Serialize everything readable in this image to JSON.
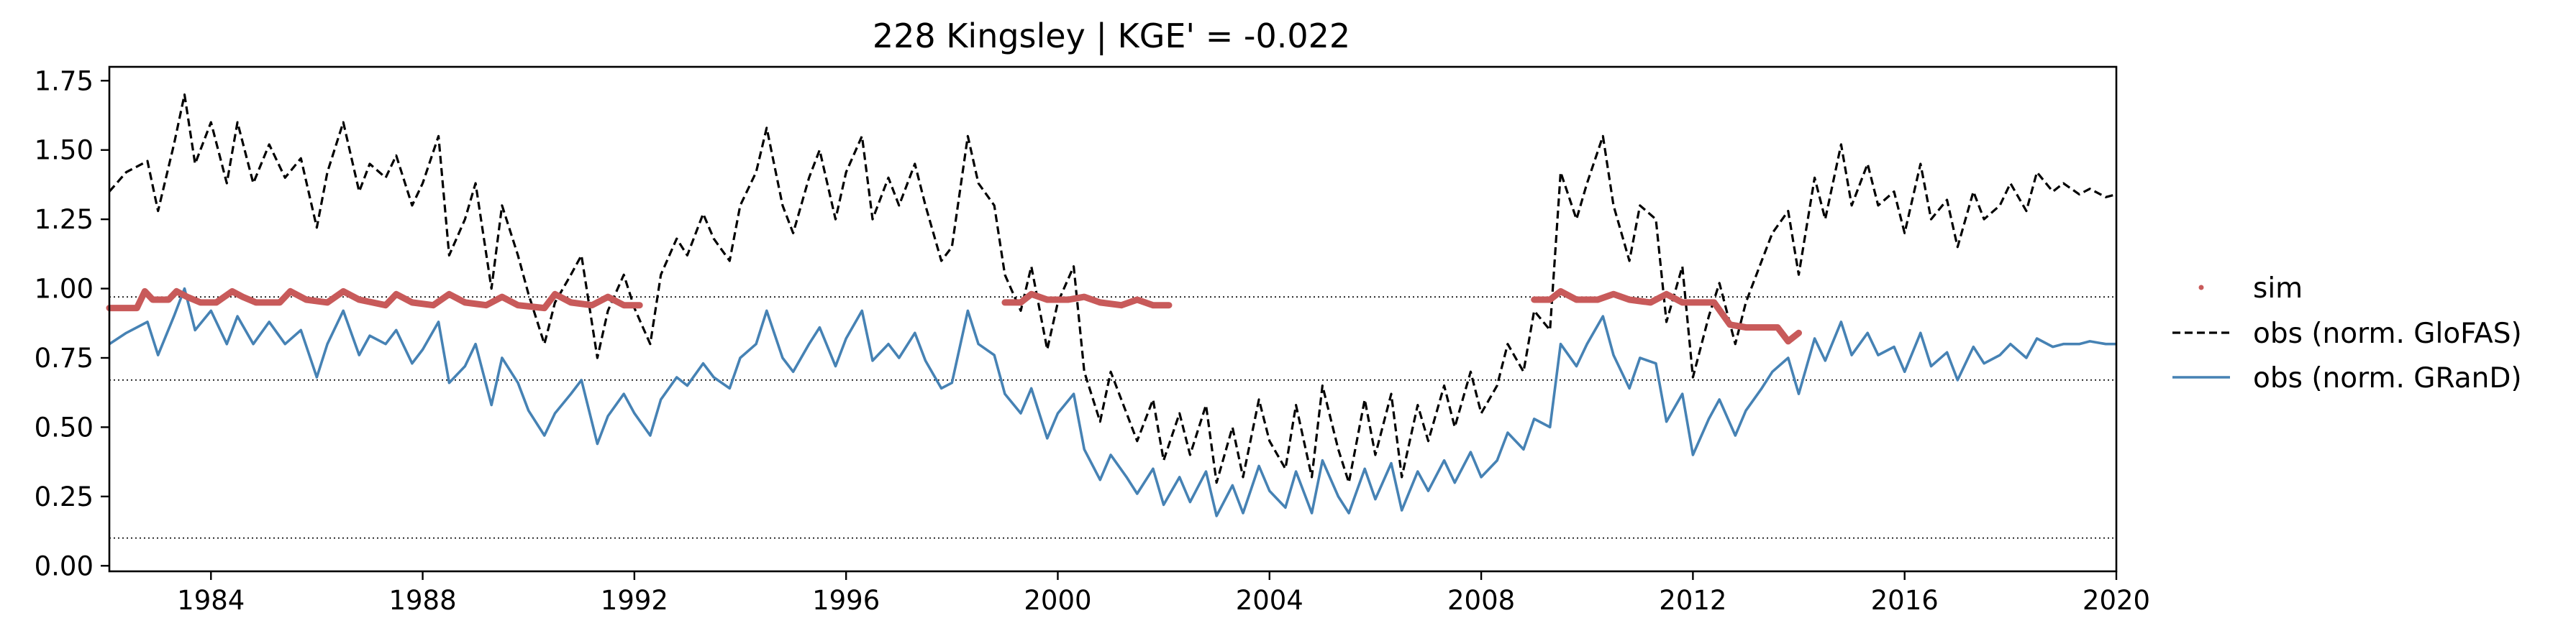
{
  "chart_data": {
    "type": "line",
    "title": "228  Kingsley | KGE' = -0.022",
    "xlabel": "",
    "ylabel": "",
    "xlim": [
      1982.08,
      2020.0
    ],
    "ylim": [
      -0.02,
      1.8
    ],
    "xticks": [
      1984,
      1988,
      1992,
      1996,
      2000,
      2004,
      2008,
      2012,
      2016,
      2020
    ],
    "yticks": [
      0.0,
      0.25,
      0.5,
      0.75,
      1.0,
      1.25,
      1.5,
      1.75
    ],
    "ytick_labels": [
      "0.00",
      "0.25",
      "0.50",
      "0.75",
      "1.00",
      "1.25",
      "1.50",
      "1.75"
    ],
    "grid": false,
    "legend_position": "outside-right",
    "reference_lines": [
      0.97,
      0.67,
      0.1
    ],
    "series": [
      {
        "name": "sim",
        "style": "dots",
        "color": "#c85a5a",
        "segments": [
          {
            "x": [
              1982.08,
              1982.6,
              1982.75,
              1982.9,
              1983.2,
              1983.35,
              1983.55,
              1983.8,
              1984.1,
              1984.4,
              1984.6,
              1984.85,
              1985.3,
              1985.5,
              1985.8,
              1986.2,
              1986.5,
              1986.8,
              1987.3,
              1987.5,
              1987.8,
              1988.2,
              1988.5,
              1988.8,
              1989.2,
              1989.5,
              1989.8,
              1990.3,
              1990.5,
              1990.8,
              1991.2,
              1991.5,
              1991.8,
              1992.1
            ],
            "y": [
              0.93,
              0.93,
              0.99,
              0.96,
              0.96,
              0.99,
              0.97,
              0.95,
              0.95,
              0.99,
              0.97,
              0.95,
              0.95,
              0.99,
              0.96,
              0.95,
              0.99,
              0.96,
              0.94,
              0.98,
              0.95,
              0.94,
              0.98,
              0.95,
              0.94,
              0.97,
              0.94,
              0.93,
              0.98,
              0.95,
              0.94,
              0.97,
              0.94,
              0.94
            ]
          },
          {
            "x": [
              1999.0,
              1999.3,
              1999.5,
              1999.8,
              2000.2,
              2000.5,
              2000.8,
              2001.2,
              2001.5,
              2001.8,
              2002.1
            ],
            "y": [
              0.95,
              0.95,
              0.98,
              0.96,
              0.96,
              0.97,
              0.95,
              0.94,
              0.96,
              0.94,
              0.94
            ]
          },
          {
            "x": [
              2009.0,
              2009.3,
              2009.5,
              2009.8,
              2010.2,
              2010.5,
              2010.8,
              2011.2,
              2011.5,
              2011.8,
              2012.1,
              2012.4,
              2012.7,
              2013.0,
              2013.3,
              2013.6,
              2013.8,
              2014.0
            ],
            "y": [
              0.96,
              0.96,
              0.99,
              0.96,
              0.96,
              0.98,
              0.96,
              0.95,
              0.98,
              0.95,
              0.95,
              0.95,
              0.87,
              0.86,
              0.86,
              0.86,
              0.81,
              0.84
            ]
          }
        ]
      },
      {
        "name": "obs (norm. GloFAS)",
        "style": "dashed",
        "color": "#000000",
        "x": [
          1982.08,
          1982.4,
          1982.8,
          1983.0,
          1983.3,
          1983.5,
          1983.7,
          1984.0,
          1984.3,
          1984.5,
          1984.8,
          1985.1,
          1985.4,
          1985.7,
          1986.0,
          1986.2,
          1986.5,
          1986.8,
          1987.0,
          1987.3,
          1987.5,
          1987.8,
          1988.0,
          1988.3,
          1988.5,
          1988.8,
          1989.0,
          1989.3,
          1989.5,
          1989.8,
          1990.0,
          1990.3,
          1990.5,
          1990.8,
          1991.0,
          1991.3,
          1991.5,
          1991.8,
          1992.0,
          1992.3,
          1992.5,
          1992.8,
          1993.0,
          1993.3,
          1993.5,
          1993.8,
          1994.0,
          1994.3,
          1994.5,
          1994.8,
          1995.0,
          1995.3,
          1995.5,
          1995.8,
          1996.0,
          1996.3,
          1996.5,
          1996.8,
          1997.0,
          1997.3,
          1997.5,
          1997.8,
          1998.0,
          1998.3,
          1998.5,
          1998.8,
          1999.0,
          1999.3,
          1999.5,
          1999.8,
          2000.0,
          2000.3,
          2000.5,
          2000.8,
          2001.0,
          2001.3,
          2001.5,
          2001.8,
          2002.0,
          2002.3,
          2002.5,
          2002.8,
          2003.0,
          2003.3,
          2003.5,
          2003.8,
          2004.0,
          2004.3,
          2004.5,
          2004.8,
          2005.0,
          2005.3,
          2005.5,
          2005.8,
          2006.0,
          2006.3,
          2006.5,
          2006.8,
          2007.0,
          2007.3,
          2007.5,
          2007.8,
          2008.0,
          2008.3,
          2008.5,
          2008.8,
          2009.0,
          2009.3,
          2009.5,
          2009.8,
          2010.0,
          2010.3,
          2010.5,
          2010.8,
          2011.0,
          2011.3,
          2011.5,
          2011.8,
          2012.0,
          2012.3,
          2012.5,
          2012.8,
          2013.0,
          2013.3,
          2013.5,
          2013.8,
          2014.0,
          2014.3,
          2014.5,
          2014.8,
          2015.0,
          2015.3,
          2015.5,
          2015.8,
          2016.0,
          2016.3,
          2016.5,
          2016.8,
          2017.0,
          2017.3,
          2017.5,
          2017.8,
          2018.0,
          2018.3,
          2018.5,
          2018.8,
          2019.0,
          2019.3,
          2019.5,
          2019.8,
          2020.0
        ],
        "y": [
          1.35,
          1.42,
          1.46,
          1.28,
          1.52,
          1.7,
          1.45,
          1.6,
          1.38,
          1.6,
          1.38,
          1.52,
          1.4,
          1.47,
          1.22,
          1.42,
          1.6,
          1.35,
          1.45,
          1.4,
          1.48,
          1.3,
          1.38,
          1.55,
          1.12,
          1.25,
          1.38,
          1.0,
          1.3,
          1.12,
          0.98,
          0.8,
          0.95,
          1.05,
          1.12,
          0.75,
          0.92,
          1.05,
          0.93,
          0.8,
          1.05,
          1.18,
          1.12,
          1.27,
          1.18,
          1.1,
          1.3,
          1.42,
          1.58,
          1.3,
          1.2,
          1.4,
          1.5,
          1.25,
          1.42,
          1.55,
          1.25,
          1.4,
          1.3,
          1.45,
          1.3,
          1.1,
          1.15,
          1.55,
          1.38,
          1.3,
          1.05,
          0.92,
          1.08,
          0.78,
          0.95,
          1.08,
          0.7,
          0.52,
          0.7,
          0.55,
          0.45,
          0.6,
          0.38,
          0.55,
          0.4,
          0.58,
          0.3,
          0.5,
          0.32,
          0.6,
          0.45,
          0.35,
          0.58,
          0.32,
          0.65,
          0.42,
          0.3,
          0.6,
          0.4,
          0.62,
          0.32,
          0.58,
          0.45,
          0.65,
          0.5,
          0.7,
          0.55,
          0.65,
          0.8,
          0.7,
          0.92,
          0.85,
          1.42,
          1.25,
          1.38,
          1.55,
          1.3,
          1.1,
          1.3,
          1.25,
          0.88,
          1.08,
          0.68,
          0.9,
          1.02,
          0.8,
          0.95,
          1.1,
          1.2,
          1.28,
          1.05,
          1.4,
          1.25,
          1.52,
          1.3,
          1.45,
          1.3,
          1.35,
          1.2,
          1.45,
          1.25,
          1.32,
          1.15,
          1.35,
          1.25,
          1.3,
          1.38,
          1.28,
          1.42,
          1.35,
          1.38,
          1.34,
          1.36,
          1.33,
          1.34
        ]
      },
      {
        "name": "obs (norm. GRanD)",
        "style": "solid",
        "color": "#4682b4",
        "x": [
          1982.08,
          1982.4,
          1982.8,
          1983.0,
          1983.3,
          1983.5,
          1983.7,
          1984.0,
          1984.3,
          1984.5,
          1984.8,
          1985.1,
          1985.4,
          1985.7,
          1986.0,
          1986.2,
          1986.5,
          1986.8,
          1987.0,
          1987.3,
          1987.5,
          1987.8,
          1988.0,
          1988.3,
          1988.5,
          1988.8,
          1989.0,
          1989.3,
          1989.5,
          1989.8,
          1990.0,
          1990.3,
          1990.5,
          1990.8,
          1991.0,
          1991.3,
          1991.5,
          1991.8,
          1992.0,
          1992.3,
          1992.5,
          1992.8,
          1993.0,
          1993.3,
          1993.5,
          1993.8,
          1994.0,
          1994.3,
          1994.5,
          1994.8,
          1995.0,
          1995.3,
          1995.5,
          1995.8,
          1996.0,
          1996.3,
          1996.5,
          1996.8,
          1997.0,
          1997.3,
          1997.5,
          1997.8,
          1998.0,
          1998.3,
          1998.5,
          1998.8,
          1999.0,
          1999.3,
          1999.5,
          1999.8,
          2000.0,
          2000.3,
          2000.5,
          2000.8,
          2001.0,
          2001.3,
          2001.5,
          2001.8,
          2002.0,
          2002.3,
          2002.5,
          2002.8,
          2003.0,
          2003.3,
          2003.5,
          2003.8,
          2004.0,
          2004.3,
          2004.5,
          2004.8,
          2005.0,
          2005.3,
          2005.5,
          2005.8,
          2006.0,
          2006.3,
          2006.5,
          2006.8,
          2007.0,
          2007.3,
          2007.5,
          2007.8,
          2008.0,
          2008.3,
          2008.5,
          2008.8,
          2009.0,
          2009.3,
          2009.5,
          2009.8,
          2010.0,
          2010.3,
          2010.5,
          2010.8,
          2011.0,
          2011.3,
          2011.5,
          2011.8,
          2012.0,
          2012.3,
          2012.5,
          2012.8,
          2013.0,
          2013.3,
          2013.5,
          2013.8,
          2014.0,
          2014.3,
          2014.5,
          2014.8,
          2015.0,
          2015.3,
          2015.5,
          2015.8,
          2016.0,
          2016.3,
          2016.5,
          2016.8,
          2017.0,
          2017.3,
          2017.5,
          2017.8,
          2018.0,
          2018.3,
          2018.5,
          2018.8,
          2019.0,
          2019.3,
          2019.5,
          2019.8,
          2020.0
        ],
        "y": [
          0.8,
          0.84,
          0.88,
          0.76,
          0.9,
          1.0,
          0.85,
          0.92,
          0.8,
          0.9,
          0.8,
          0.88,
          0.8,
          0.85,
          0.68,
          0.8,
          0.92,
          0.76,
          0.83,
          0.8,
          0.85,
          0.73,
          0.78,
          0.88,
          0.66,
          0.72,
          0.8,
          0.58,
          0.75,
          0.66,
          0.56,
          0.47,
          0.55,
          0.62,
          0.67,
          0.44,
          0.54,
          0.62,
          0.55,
          0.47,
          0.6,
          0.68,
          0.65,
          0.73,
          0.68,
          0.64,
          0.75,
          0.8,
          0.92,
          0.75,
          0.7,
          0.8,
          0.86,
          0.72,
          0.82,
          0.92,
          0.74,
          0.8,
          0.75,
          0.84,
          0.74,
          0.64,
          0.66,
          0.92,
          0.8,
          0.76,
          0.62,
          0.55,
          0.64,
          0.46,
          0.55,
          0.62,
          0.42,
          0.31,
          0.4,
          0.32,
          0.26,
          0.35,
          0.22,
          0.32,
          0.23,
          0.34,
          0.18,
          0.29,
          0.19,
          0.36,
          0.27,
          0.21,
          0.34,
          0.19,
          0.38,
          0.25,
          0.19,
          0.35,
          0.24,
          0.37,
          0.2,
          0.34,
          0.27,
          0.38,
          0.3,
          0.41,
          0.32,
          0.38,
          0.48,
          0.42,
          0.53,
          0.5,
          0.8,
          0.72,
          0.8,
          0.9,
          0.76,
          0.64,
          0.75,
          0.73,
          0.52,
          0.62,
          0.4,
          0.53,
          0.6,
          0.47,
          0.56,
          0.64,
          0.7,
          0.75,
          0.62,
          0.82,
          0.74,
          0.88,
          0.76,
          0.84,
          0.76,
          0.79,
          0.7,
          0.84,
          0.72,
          0.77,
          0.67,
          0.79,
          0.73,
          0.76,
          0.8,
          0.75,
          0.82,
          0.79,
          0.8,
          0.8,
          0.81,
          0.8,
          0.8
        ]
      }
    ]
  }
}
